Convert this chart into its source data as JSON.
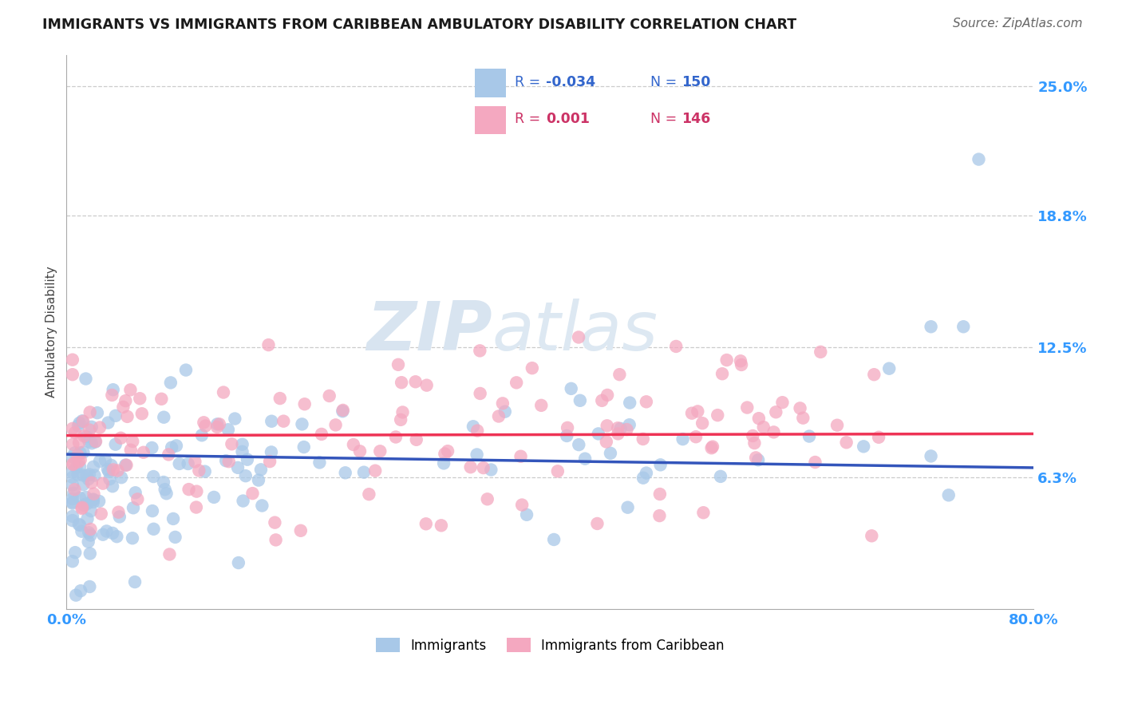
{
  "title": "IMMIGRANTS VS IMMIGRANTS FROM CARIBBEAN AMBULATORY DISABILITY CORRELATION CHART",
  "source": "Source: ZipAtlas.com",
  "ylabel": "Ambulatory Disability",
  "xmin": 0.0,
  "xmax": 0.8,
  "ymin": 0.0,
  "ymax": 0.265,
  "ytick_vals": [
    0.063,
    0.125,
    0.188,
    0.25
  ],
  "ytick_labels": [
    "6.3%",
    "12.5%",
    "18.8%",
    "25.0%"
  ],
  "xtick_vals": [
    0.0,
    0.8
  ],
  "xtick_labels": [
    "0.0%",
    "80.0%"
  ],
  "blue_color": "#a8c8e8",
  "pink_color": "#f4a8c0",
  "blue_line_color": "#3355bb",
  "pink_line_color": "#ee3355",
  "label_immigrants": "Immigrants",
  "label_caribbean": "Immigrants from Caribbean",
  "legend_blue_r": "R = -0.034",
  "legend_blue_n": "N = 150",
  "legend_pink_r": "R =  0.001",
  "legend_pink_n": "N = 146"
}
